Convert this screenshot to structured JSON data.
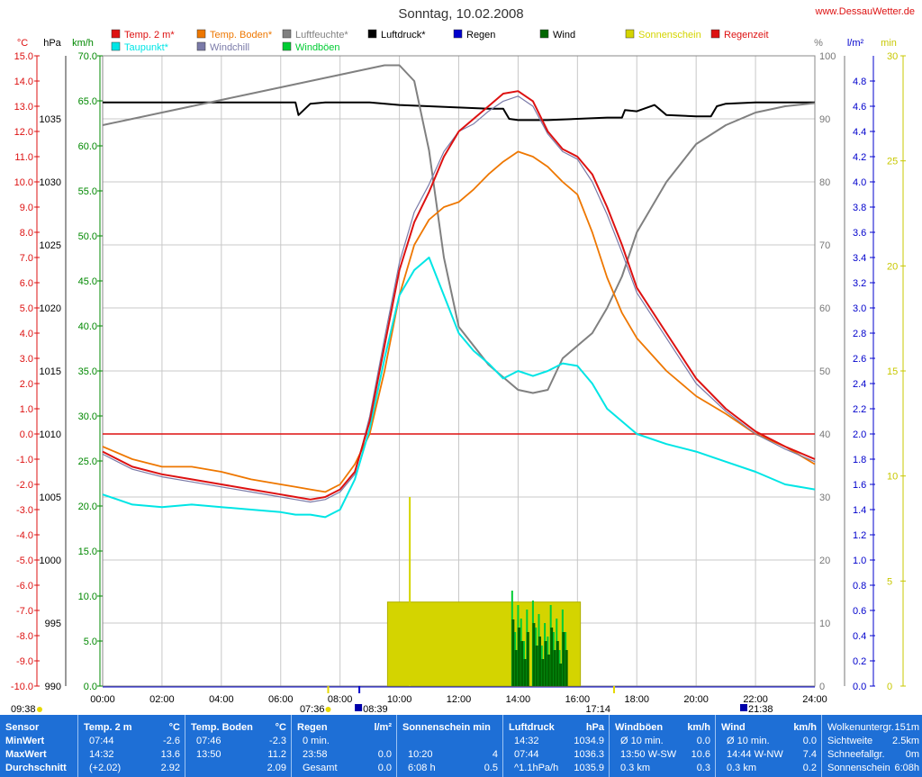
{
  "title": "Sonntag, 10.02.2008",
  "site": "www.DessauWetter.de",
  "colors": {
    "temp2m": "#dd1111",
    "taupunkt": "#00e5e5",
    "boden": "#ee7700",
    "windchill": "#7a7aa8",
    "luftfeuchte": "#808080",
    "windboeen": "#00cc33",
    "luftdruck": "#000000",
    "regen": "#0000cc",
    "wind": "#006600",
    "sonne": "#d4d400",
    "regenzeit": "#dd1111",
    "grid": "#c8c8c8"
  },
  "legend": [
    {
      "label": "Temp. 2 m*",
      "color": "#dd1111"
    },
    {
      "label": "Temp. Boden*",
      "color": "#ee7700"
    },
    {
      "label": "Luftfeuchte*",
      "color": "#808080"
    },
    {
      "label": "Luftdruck*",
      "color": "#000000"
    },
    {
      "label": "Regen",
      "color": "#0000cc"
    },
    {
      "label": "Wind",
      "color": "#006600"
    },
    {
      "label": "Sonnenschein",
      "color": "#d4d400"
    },
    {
      "label": "Regenzeit",
      "color": "#dd1111"
    },
    {
      "label": "Taupunkt*",
      "color": "#00e5e5"
    },
    {
      "label": "Windchill",
      "color": "#7a7aa8"
    },
    {
      "label": "Windböen",
      "color": "#00cc33"
    }
  ],
  "axes": {
    "temp_unit": "°C",
    "pressure_unit": "hPa",
    "wind_unit": "km/h",
    "humidity_unit": "%",
    "rain_unit": "l/m²",
    "sun_unit": "min",
    "temp_ticks": [
      "15.0",
      "14.0",
      "13.0",
      "12.0",
      "11.0",
      "10.0",
      "9.0",
      "8.0",
      "7.0",
      "6.0",
      "5.0",
      "4.0",
      "3.0",
      "2.0",
      "1.0",
      "0.0",
      "-1.0",
      "-2.0",
      "-3.0",
      "-4.0",
      "-5.0",
      "-6.0",
      "-7.0",
      "-8.0",
      "-9.0",
      "-10.0"
    ],
    "pressure_ticks": [
      "1035",
      "1030",
      "1025",
      "1020",
      "1015",
      "1010",
      "1005",
      "1000",
      "995",
      "990"
    ],
    "wind_ticks": [
      "70.0",
      "65.0",
      "60.0",
      "55.0",
      "50.0",
      "45.0",
      "40.0",
      "35.0",
      "30.0",
      "25.0",
      "20.0",
      "15.0",
      "10.0",
      "5.0",
      "0.0"
    ],
    "humidity_ticks": [
      "100",
      "90",
      "80",
      "70",
      "60",
      "50",
      "40",
      "30",
      "20",
      "10",
      "0"
    ],
    "rain_ticks": [
      "4.8",
      "4.6",
      "4.4",
      "4.2",
      "4.0",
      "3.8",
      "3.6",
      "3.4",
      "3.2",
      "3.0",
      "2.8",
      "2.6",
      "2.4",
      "2.2",
      "2.0",
      "1.8",
      "1.6",
      "1.4",
      "1.2",
      "1.0",
      "0.8",
      "0.6",
      "0.4",
      "0.2",
      "0.0"
    ],
    "sun_ticks": [
      "30",
      "25",
      "20",
      "15",
      "10",
      "5",
      "0"
    ],
    "time_ticks": [
      "00:00",
      "02:00",
      "04:00",
      "06:00",
      "08:00",
      "10:00",
      "12:00",
      "14:00",
      "16:00",
      "18:00",
      "20:00",
      "22:00",
      "24:00"
    ]
  },
  "markers": {
    "sunrise": "07:36",
    "sunset": "17:14",
    "moonset": "09:38",
    "moonrise_1": "08:39",
    "moonrise_2": "21:38"
  },
  "chart_data": {
    "type": "line",
    "title": "Sonntag, 10.02.2008",
    "xlabel": "",
    "xlim": [
      0,
      24
    ],
    "temp_range": [
      -10,
      15
    ],
    "humidity_range": [
      0,
      100
    ],
    "pressure_range": [
      990,
      1040
    ],
    "wind_range": [
      0,
      70
    ],
    "sun_range": [
      0,
      30
    ],
    "series": [
      {
        "name": "Temp. 2 m",
        "axis": "temp",
        "color": "#dd1111",
        "x": [
          0,
          1,
          2,
          3,
          4,
          5,
          6,
          6.5,
          7,
          7.5,
          8,
          8.5,
          9,
          9.5,
          10,
          10.5,
          11,
          11.5,
          12,
          12.5,
          13,
          13.5,
          14,
          14.5,
          15,
          15.5,
          16,
          16.5,
          17,
          17.5,
          18,
          19,
          20,
          21,
          22,
          23,
          24
        ],
        "y": [
          -0.7,
          -1.3,
          -1.6,
          -1.8,
          -2.0,
          -2.2,
          -2.4,
          -2.5,
          -2.6,
          -2.5,
          -2.2,
          -1.5,
          0.5,
          3.5,
          6.5,
          8.4,
          9.6,
          11.0,
          12.0,
          12.5,
          13.0,
          13.5,
          13.6,
          13.2,
          12.0,
          11.3,
          11.0,
          10.3,
          9.0,
          7.5,
          5.8,
          4.0,
          2.2,
          1.0,
          0.1,
          -0.5,
          -1.0
        ]
      },
      {
        "name": "Windchill",
        "axis": "temp",
        "color": "#7a7aa8",
        "x": [
          0,
          1,
          2,
          3,
          4,
          5,
          6,
          6.5,
          7,
          7.5,
          8,
          8.5,
          9,
          9.5,
          10,
          10.5,
          11,
          11.5,
          12,
          12.5,
          13,
          13.5,
          14,
          14.5,
          15,
          15.5,
          16,
          16.5,
          17,
          17.5,
          18,
          19,
          20,
          21,
          22,
          23,
          24
        ],
        "y": [
          -0.8,
          -1.4,
          -1.7,
          -1.9,
          -2.1,
          -2.3,
          -2.5,
          -2.6,
          -2.7,
          -2.6,
          -2.3,
          -1.6,
          0.7,
          3.8,
          6.8,
          8.8,
          9.9,
          11.2,
          12.0,
          12.3,
          12.8,
          13.2,
          13.4,
          13.0,
          11.9,
          11.2,
          10.9,
          10.0,
          8.7,
          7.2,
          5.6,
          3.8,
          2.0,
          0.9,
          0.0,
          -0.6,
          -1.1
        ]
      },
      {
        "name": "Temp. Boden",
        "axis": "temp",
        "color": "#ee7700",
        "x": [
          0,
          1,
          2,
          3,
          4,
          5,
          6,
          6.5,
          7,
          7.5,
          8,
          8.5,
          9,
          9.5,
          10,
          10.5,
          11,
          11.5,
          12,
          12.5,
          13,
          13.5,
          14,
          14.5,
          15,
          15.5,
          16,
          16.5,
          17,
          17.5,
          18,
          19,
          20,
          21,
          22,
          23,
          24
        ],
        "y": [
          -0.5,
          -1.0,
          -1.3,
          -1.3,
          -1.5,
          -1.8,
          -2.0,
          -2.1,
          -2.2,
          -2.3,
          -2.0,
          -1.2,
          0.0,
          2.5,
          5.5,
          7.5,
          8.5,
          9.0,
          9.2,
          9.7,
          10.3,
          10.8,
          11.2,
          11.0,
          10.6,
          10.0,
          9.5,
          8.0,
          6.2,
          4.8,
          3.8,
          2.5,
          1.5,
          0.8,
          0.0,
          -0.5,
          -1.2
        ]
      },
      {
        "name": "Taupunkt",
        "axis": "temp",
        "color": "#00e5e5",
        "x": [
          0,
          1,
          2,
          3,
          4,
          5,
          6,
          6.5,
          7,
          7.5,
          8,
          8.5,
          9,
          9.5,
          10,
          10.5,
          11,
          11.5,
          12,
          12.5,
          13,
          13.5,
          14,
          14.5,
          15,
          15.5,
          16,
          16.5,
          17,
          17.5,
          18,
          19,
          20,
          21,
          22,
          23,
          24
        ],
        "y": [
          -2.4,
          -2.8,
          -2.9,
          -2.8,
          -2.9,
          -3.0,
          -3.1,
          -3.2,
          -3.2,
          -3.3,
          -3.0,
          -1.8,
          0.2,
          3.0,
          5.5,
          6.5,
          7.0,
          5.5,
          4.0,
          3.3,
          2.8,
          2.2,
          2.5,
          2.3,
          2.5,
          2.8,
          2.7,
          2.0,
          1.0,
          0.5,
          0.0,
          -0.4,
          -0.7,
          -1.1,
          -1.5,
          -2.0,
          -2.2
        ]
      },
      {
        "name": "Luftfeuchte",
        "axis": "humidity",
        "color": "#808080",
        "x": [
          0,
          1,
          2,
          3,
          4,
          5,
          6,
          6.5,
          7,
          7.5,
          8,
          8.5,
          9,
          9.5,
          10,
          10.5,
          11,
          11.5,
          12,
          12.5,
          13,
          13.5,
          14,
          14.5,
          15,
          15.5,
          16,
          16.5,
          17,
          17.5,
          18,
          19,
          20,
          21,
          22,
          23,
          24
        ],
        "y": [
          89,
          90,
          91,
          92,
          93,
          94,
          95,
          95.5,
          96,
          96.5,
          97,
          97.5,
          98,
          98.5,
          98.5,
          96,
          85,
          68,
          57,
          54,
          51,
          49,
          47,
          46.5,
          47,
          52,
          54,
          56,
          60,
          65,
          72,
          80,
          86,
          89,
          91,
          92,
          92.5
        ]
      },
      {
        "name": "Luftdruck",
        "axis": "pressure",
        "color": "#000000",
        "x": [
          0,
          1,
          2,
          3,
          4,
          5,
          6,
          6.5,
          6.6,
          7,
          7.5,
          8,
          9,
          10,
          11,
          12,
          13,
          13.5,
          13.7,
          14,
          15,
          16,
          17,
          17.5,
          17.6,
          18,
          18.6,
          19,
          20,
          20.5,
          20.7,
          21,
          22,
          23,
          24
        ],
        "y": [
          1036.3,
          1036.3,
          1036.3,
          1036.3,
          1036.3,
          1036.3,
          1036.3,
          1036.3,
          1035.3,
          1036.2,
          1036.3,
          1036.3,
          1036.3,
          1036.1,
          1036.0,
          1035.9,
          1035.8,
          1035.8,
          1035.0,
          1034.9,
          1034.9,
          1035.0,
          1035.1,
          1035.1,
          1035.7,
          1035.6,
          1036.1,
          1035.3,
          1035.2,
          1035.2,
          1036.0,
          1036.2,
          1036.3,
          1036.3,
          1036.3
        ]
      },
      {
        "name": "Sonnenschein",
        "axis": "sun",
        "color": "#d4d400",
        "x": [
          9.6,
          16.1
        ],
        "y": [
          4,
          4
        ]
      }
    ],
    "gust_bars": {
      "name": "Windböen",
      "axis": "wind",
      "color": "#00cc33",
      "x": [
        13.8,
        13.9,
        14.0,
        14.1,
        14.2,
        14.3,
        14.5,
        14.6,
        14.7,
        14.8,
        14.9,
        15.0,
        15.1,
        15.2,
        15.3,
        15.4,
        15.5,
        15.6
      ],
      "y": [
        10.6,
        6.0,
        9.0,
        7.5,
        5.0,
        8.5,
        9.5,
        6.5,
        8.0,
        4.5,
        7.0,
        5.5,
        9.0,
        6.0,
        7.5,
        4.0,
        8.5,
        6.0
      ]
    },
    "wind_bars": {
      "name": "Wind",
      "axis": "wind",
      "color": "#006600",
      "x": [
        13.8,
        13.9,
        14.0,
        14.1,
        14.2,
        14.3,
        14.5,
        14.6,
        14.7,
        14.8,
        14.9,
        15.0,
        15.1,
        15.2,
        15.3,
        15.4,
        15.5,
        15.6
      ],
      "y": [
        7.4,
        4.0,
        6.5,
        5.0,
        3.0,
        6.0,
        7.0,
        4.5,
        5.5,
        3.0,
        5.0,
        3.5,
        6.5,
        4.0,
        5.0,
        2.5,
        6.0,
        4.0
      ]
    },
    "sun_spike": {
      "x": 10.35,
      "y": 9
    }
  },
  "stats": {
    "headers": {
      "sensor": "Sensor",
      "temp2m": "Temp. 2 m",
      "temp2m_unit": "°C",
      "boden": "Temp. Boden",
      "boden_unit": "°C",
      "regen": "Regen",
      "regen_unit": "l/m²",
      "sonne": "Sonnenschein min",
      "druck": "Luftdruck",
      "druck_unit": "hPa",
      "boeen": "Windböen",
      "boeen_unit": "km/h",
      "wind": "Wind",
      "wind_unit": "km/h"
    },
    "rows": [
      "MinWert",
      "MaxWert",
      "Durchschnitt"
    ],
    "temp2m": [
      [
        "07:44",
        "-2.6"
      ],
      [
        "14:32",
        "13.6"
      ],
      [
        "(+2.02)",
        "2.92"
      ]
    ],
    "boden": [
      [
        "07:46",
        "-2.3"
      ],
      [
        "13:50",
        "11.2"
      ],
      [
        "",
        "2.09"
      ]
    ],
    "regen": [
      [
        "0 min.",
        ""
      ],
      [
        "23:58",
        "0.0"
      ],
      [
        "Gesamt",
        "0.0"
      ]
    ],
    "sonne": [
      [
        "",
        ""
      ],
      [
        "10:20",
        "4"
      ],
      [
        "6:08 h",
        "0.5"
      ]
    ],
    "druck": [
      [
        "14:32",
        "1034.9"
      ],
      [
        "07:44",
        "1036.3"
      ],
      [
        "^1.1hPa/h",
        "1035.9"
      ]
    ],
    "boeen": [
      [
        "Ø 10 min.",
        "0.0"
      ],
      [
        "13:50  W-SW",
        "10.6"
      ],
      [
        "0.3 km",
        "0.3"
      ]
    ],
    "wind": [
      [
        "Ø 10 min.",
        "0.0"
      ],
      [
        "14:44  W-NW",
        "7.4"
      ],
      [
        "0.3 km",
        "0.2"
      ]
    ],
    "extra": [
      [
        "Wolkenuntergr.",
        "151m"
      ],
      [
        "Sichtweite",
        "2.5km"
      ],
      [
        "Schneefallgr.",
        "0m"
      ],
      [
        "Sonnenschein",
        "6:08h"
      ]
    ]
  }
}
